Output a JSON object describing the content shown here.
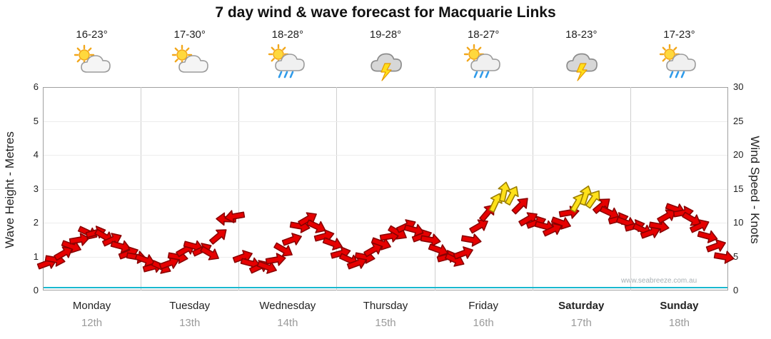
{
  "title": "7 day wind & wave forecast for Macquarie Links",
  "watermark": "www.seabreeze.com.au",
  "axes": {
    "left_label": "Wave Height - Metres",
    "right_label": "Wind Speed - Knots",
    "left_ticks": [
      "6",
      "5",
      "4",
      "3",
      "2",
      "1",
      "0"
    ],
    "right_ticks": [
      "30",
      "25",
      "20",
      "15",
      "10",
      "5",
      "0"
    ]
  },
  "days": [
    {
      "name": "Monday",
      "date": "12th",
      "temp": "16-23°",
      "icon": "partly-cloudy",
      "bold": false
    },
    {
      "name": "Tuesday",
      "date": "13th",
      "temp": "17-30°",
      "icon": "partly-cloudy",
      "bold": false
    },
    {
      "name": "Wednesday",
      "date": "14th",
      "temp": "18-28°",
      "icon": "sun-showers",
      "bold": false
    },
    {
      "name": "Thursday",
      "date": "15th",
      "temp": "19-28°",
      "icon": "thunderstorm",
      "bold": false
    },
    {
      "name": "Friday",
      "date": "16th",
      "temp": "18-27°",
      "icon": "sun-showers",
      "bold": false
    },
    {
      "name": "Saturday",
      "date": "17th",
      "temp": "18-23°",
      "icon": "thunderstorm",
      "bold": true
    },
    {
      "name": "Sunday",
      "date": "18th",
      "temp": "17-23°",
      "icon": "sun-showers",
      "bold": true
    }
  ],
  "chart_data": {
    "type": "scatter",
    "subtype": "wind-arrow-feather-plot",
    "x_unit": "2-hour intervals across 7 days (12 points per day)",
    "wave_height_axis": {
      "label": "Wave Height - Metres",
      "range": [
        0,
        6
      ]
    },
    "wind_speed_axis": {
      "label": "Wind Speed - Knots",
      "range": [
        0,
        30
      ]
    },
    "arrow_colors": {
      "normal": "#e60000",
      "normal_stroke": "#8a0000",
      "strong": "#ffe11a",
      "strong_stroke": "#9a7d00",
      "strong_threshold_knots": 13
    },
    "wave_height_series": {
      "name": "Wave Height (m)",
      "approx_value": 0.05,
      "color": "#19b8cf"
    },
    "series": [
      {
        "name": "Wind Speed (knots)",
        "values": [
          4,
          4.5,
          5.5,
          6.5,
          7.5,
          8.5,
          8.5,
          8,
          7.5,
          6.5,
          5.5,
          5,
          4.5,
          3.5,
          3.5,
          4,
          5,
          6,
          6.5,
          6,
          5.5,
          8,
          10.5,
          11,
          5,
          4,
          3.5,
          3.5,
          4.5,
          6,
          7.5,
          9.5,
          10.5,
          9.5,
          8,
          7,
          5.5,
          4.5,
          4,
          5,
          6,
          7,
          8,
          8.5,
          9.5,
          9,
          8,
          7.5,
          6,
          5,
          4.5,
          5.5,
          7.5,
          9.5,
          11.5,
          13,
          14.5,
          14,
          12.5,
          10.5,
          10,
          9.5,
          9,
          10,
          11.5,
          13,
          14,
          13.5,
          12.5,
          11.5,
          10.5,
          10,
          9.5,
          9,
          8.5,
          9.5,
          11,
          12,
          11.5,
          10.5,
          9.5,
          8,
          6.5,
          5
        ],
        "directions_deg": [
          -20,
          10,
          -30,
          20,
          -10,
          25,
          -15,
          30,
          -25,
          15,
          -20,
          10,
          20,
          -15,
          25,
          -20,
          10,
          -30,
          15,
          -25,
          30,
          -40,
          182,
          170,
          -20,
          15,
          -25,
          20,
          -10,
          30,
          -20,
          10,
          -30,
          25,
          -15,
          20,
          -15,
          25,
          -20,
          10,
          -30,
          20,
          -10,
          30,
          -25,
          15,
          -20,
          10,
          20,
          -15,
          25,
          -20,
          10,
          -30,
          -50,
          -65,
          -78,
          -62,
          -45,
          -30,
          -20,
          15,
          -25,
          20,
          -10,
          -60,
          -72,
          -55,
          -40,
          25,
          -15,
          20,
          -15,
          25,
          -20,
          10,
          -30,
          20,
          -10,
          30,
          -25,
          15,
          -20,
          10
        ]
      }
    ]
  }
}
